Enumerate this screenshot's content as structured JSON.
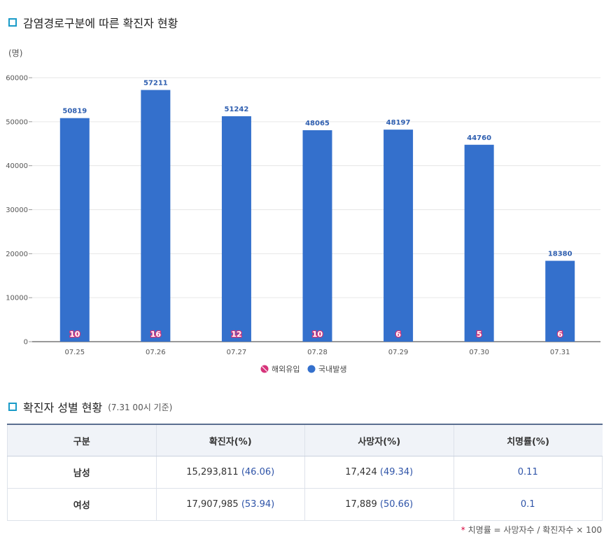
{
  "section1": {
    "title": "감염경로구분에 따른 확진자 현황",
    "unit": "(명)"
  },
  "chart_data": {
    "type": "bar",
    "categories": [
      "07.25",
      "07.26",
      "07.27",
      "07.28",
      "07.29",
      "07.30",
      "07.31"
    ],
    "series": [
      {
        "name": "해외유입",
        "values": [
          10,
          16,
          12,
          10,
          6,
          5,
          6
        ],
        "color": "#d6337a"
      },
      {
        "name": "국내발생",
        "values": [
          50819,
          57211,
          51242,
          48065,
          48197,
          44760,
          18380
        ],
        "color": "#3470cc"
      }
    ],
    "yticks": [
      0,
      10000,
      20000,
      30000,
      40000,
      50000,
      60000
    ],
    "ylim": [
      0,
      60000
    ],
    "legend_position": "bottom",
    "grid": true
  },
  "section2": {
    "title": "확진자 성별 현황",
    "note": "(7.31 00시 기준)"
  },
  "table": {
    "headers": [
      "구분",
      "확진자(%)",
      "사망자(%)",
      "치명률(%)"
    ],
    "rows": [
      {
        "label": "남성",
        "cases": "15,293,811",
        "cases_pct": "(46.06)",
        "deaths": "17,424",
        "deaths_pct": "(49.34)",
        "fatality": "0.11"
      },
      {
        "label": "여성",
        "cases": "17,907,985",
        "cases_pct": "(53.94)",
        "deaths": "17,889",
        "deaths_pct": "(50.66)",
        "fatality": "0.1"
      }
    ]
  },
  "footnote": {
    "star": "*",
    "text": "치명률 = 사망자수 / 확진자수 × 100"
  }
}
